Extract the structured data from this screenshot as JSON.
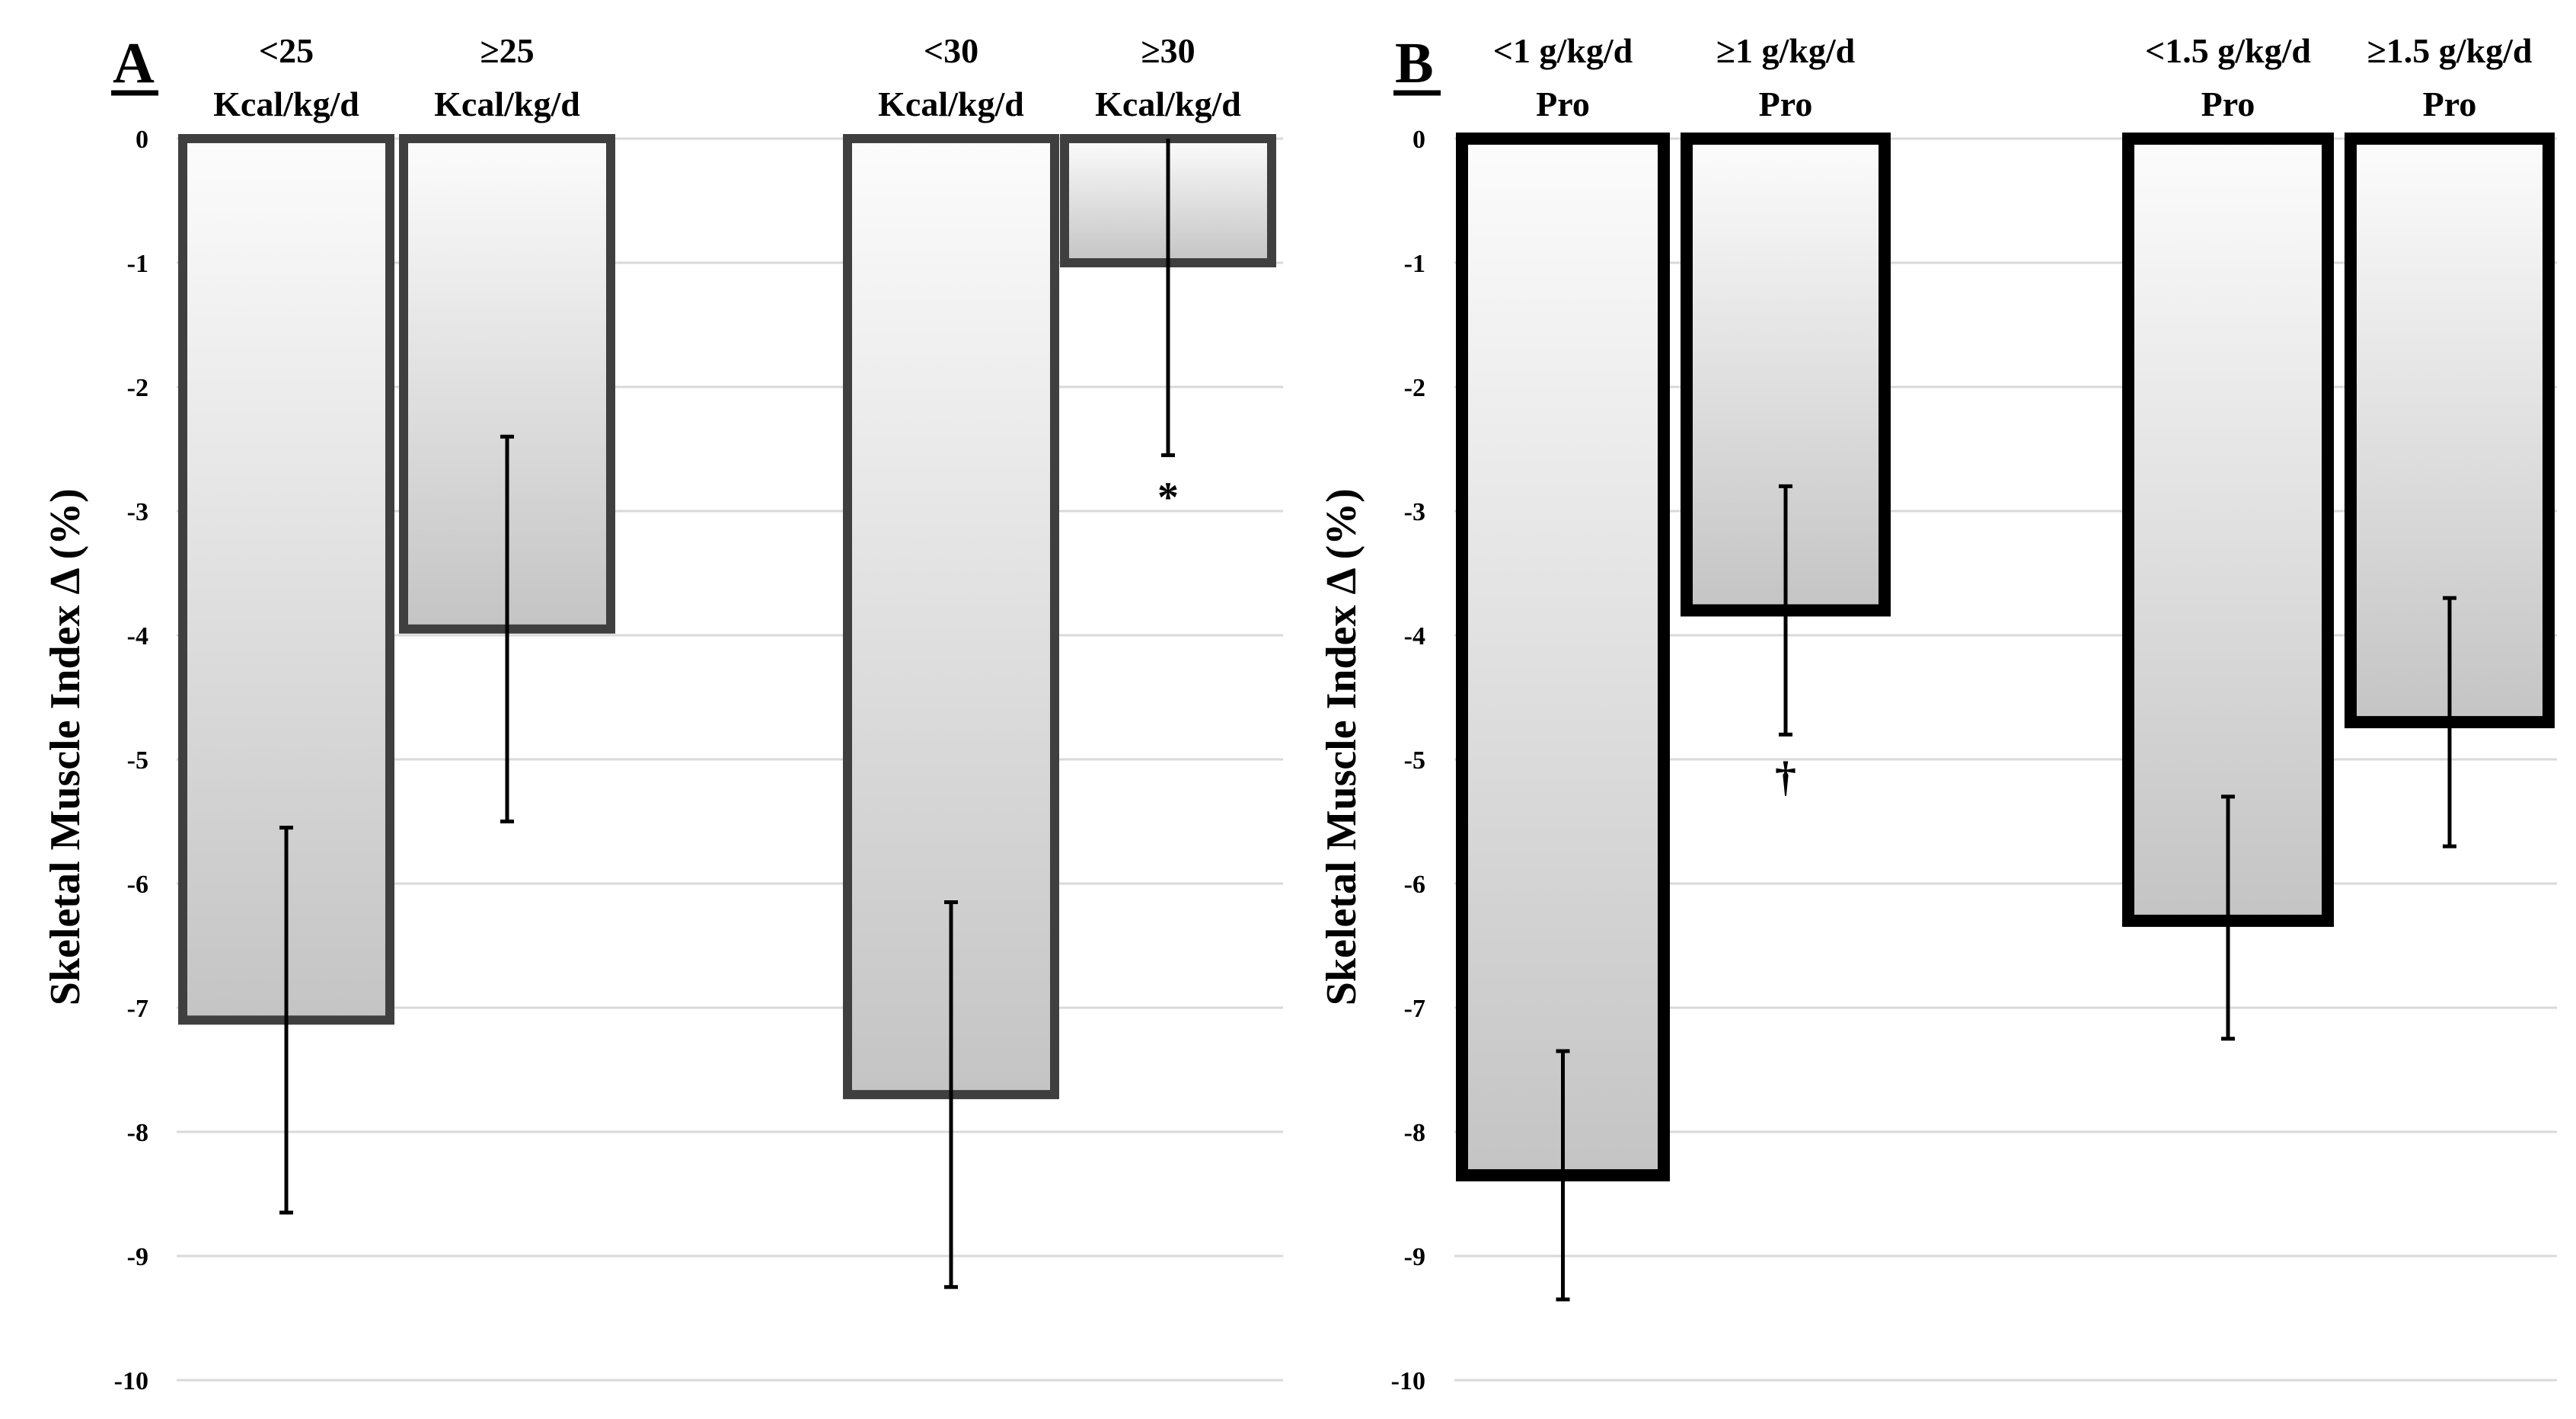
{
  "chart_data": [
    {
      "type": "bar",
      "panel_label": "A",
      "ylabel": "Skeletal Muscle Index Δ (%)",
      "ylim": [
        -10,
        0
      ],
      "yticks": [
        "0",
        "-1",
        "-2",
        "-3",
        "-4",
        "-5",
        "-6",
        "-7",
        "-8",
        "-9",
        "-10"
      ],
      "grid": true,
      "categories": [
        [
          "<25",
          "Kcal/kg/d"
        ],
        [
          "≥25",
          "Kcal/kg/d"
        ],
        [
          "<30",
          "Kcal/kg/d"
        ],
        [
          "≥30",
          "Kcal/kg/d"
        ]
      ],
      "values": [
        -7.1,
        -3.95,
        -7.7,
        -1.0
      ],
      "error_low": [
        -8.65,
        -5.5,
        -9.25,
        -2.55
      ],
      "error_high": [
        -5.55,
        -2.4,
        -6.15,
        0
      ],
      "annotations": [
        "",
        "",
        "",
        "*"
      ],
      "colors": {
        "border": "#3f3f3f",
        "fill_top": "#fcfcfc",
        "fill_bottom": "#c4c4c4",
        "grid": "#d9d9d9"
      }
    },
    {
      "type": "bar",
      "panel_label": "B",
      "ylabel": "Skeletal Muscle Index Δ (%)",
      "ylim": [
        -10,
        0
      ],
      "yticks": [
        "0",
        "-1",
        "-2",
        "-3",
        "-4",
        "-5",
        "-6",
        "-7",
        "-8",
        "-9",
        "-10"
      ],
      "grid": true,
      "categories": [
        [
          "<1 g/kg/d",
          "Pro"
        ],
        [
          "≥1 g/kg/d",
          "Pro"
        ],
        [
          "<1.5 g/kg/d",
          "Pro"
        ],
        [
          "≥1.5 g/kg/d",
          "Pro"
        ]
      ],
      "values": [
        -8.35,
        -3.8,
        -6.3,
        -4.7
      ],
      "error_low": [
        -9.35,
        -4.8,
        -7.25,
        -5.7
      ],
      "error_high": [
        -7.35,
        -2.8,
        -5.3,
        -3.7
      ],
      "annotations": [
        "",
        "†",
        "",
        ""
      ],
      "colors": {
        "border": "#000000",
        "fill_top": "#fcfcfc",
        "fill_bottom": "#c4c4c4",
        "grid": "#d9d9d9"
      }
    }
  ]
}
